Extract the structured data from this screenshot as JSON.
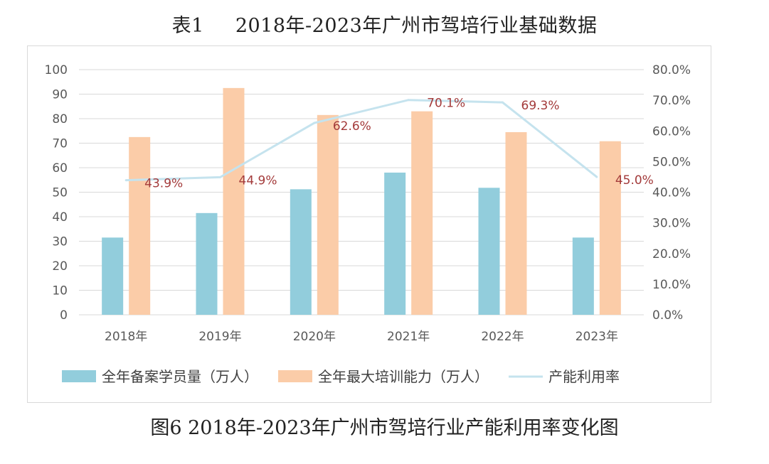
{
  "header": {
    "table_label": "表1",
    "title": "2018年-2023年广州市驾培行业基础数据"
  },
  "caption": "图6 2018年-2023年广州市驾培行业产能利用率变化图",
  "chart_data": {
    "type": "bar",
    "categories": [
      "2018年",
      "2019年",
      "2020年",
      "2021年",
      "2022年",
      "2023年"
    ],
    "series": [
      {
        "name": "全年备案学员量（万人）",
        "kind": "bar",
        "axis": "left",
        "color": "#92cddc",
        "values": [
          31.5,
          41.5,
          51.2,
          58,
          51.8,
          31.5
        ]
      },
      {
        "name": "全年最大培训能力（万人）",
        "kind": "bar",
        "axis": "left",
        "color": "#fbcca8",
        "values": [
          72.5,
          92.5,
          81.5,
          83,
          74.5,
          70.8
        ]
      },
      {
        "name": "产能利用率",
        "kind": "line",
        "axis": "right",
        "color": "#c5e3ee",
        "values": [
          43.9,
          44.9,
          62.6,
          70.1,
          69.3,
          45.0
        ],
        "labels": [
          "43.9%",
          "44.9%",
          "62.6%",
          "70.1%",
          "69.3%",
          "45.0%"
        ],
        "label_color": "#a33a3a"
      }
    ],
    "y_left": {
      "ticks": [
        "0",
        "10",
        "20",
        "30",
        "40",
        "50",
        "60",
        "70",
        "80",
        "90",
        "100"
      ],
      "range": [
        0,
        100
      ]
    },
    "y_right": {
      "ticks": [
        "0.0%",
        "10.0%",
        "20.0%",
        "30.0%",
        "40.0%",
        "50.0%",
        "60.0%",
        "70.0%",
        "80.0%"
      ],
      "range": [
        0,
        80
      ]
    },
    "grid": true,
    "legend_position": "bottom"
  }
}
